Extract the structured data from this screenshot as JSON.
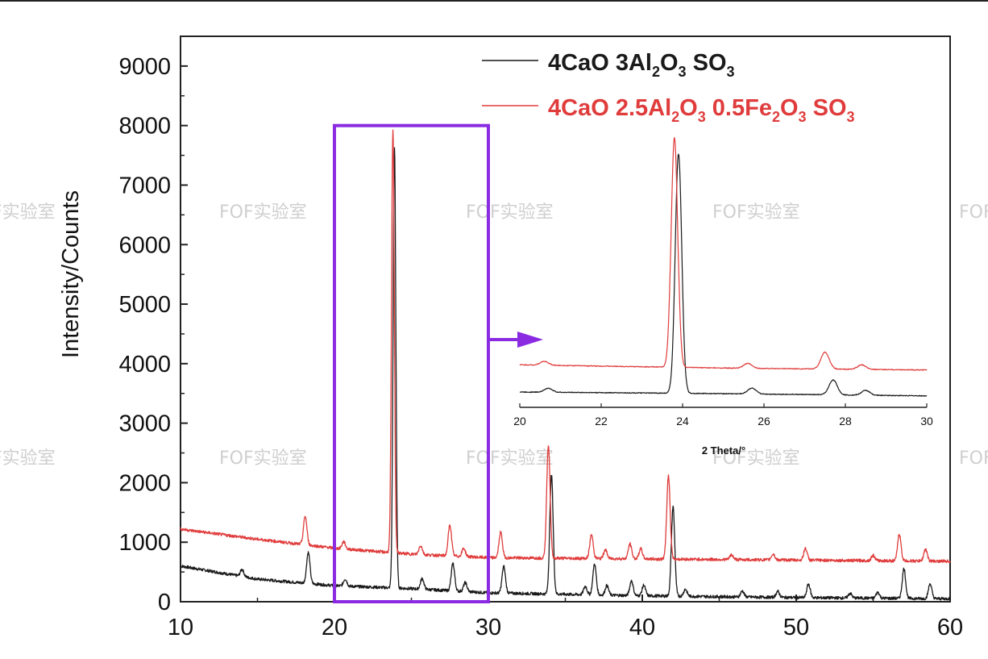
{
  "chart_data": {
    "type": "line",
    "title": "",
    "xlabel": "",
    "ylabel": "Intensity/Counts",
    "xlim": [
      10,
      60
    ],
    "ylim": [
      0,
      9500
    ],
    "xticks": [
      10,
      20,
      30,
      40,
      50,
      60
    ],
    "yticks": [
      0,
      1000,
      2000,
      3000,
      4000,
      5000,
      6000,
      7000,
      8000,
      9000
    ],
    "legend_position": "top-right",
    "series": [
      {
        "legend_parts": [
          {
            "text": "4CaO  3Al",
            "sub": false
          },
          {
            "text": "2",
            "sub": true
          },
          {
            "text": "O",
            "sub": false
          },
          {
            "text": "3",
            "sub": true
          },
          {
            "text": " SO",
            "sub": false
          },
          {
            "text": "3",
            "sub": true
          }
        ],
        "color": "#1a1a1a",
        "baseline": [
          [
            10,
            600
          ],
          [
            15,
            380
          ],
          [
            20,
            270
          ],
          [
            25,
            220
          ],
          [
            30,
            150
          ],
          [
            40,
            100
          ],
          [
            50,
            70
          ],
          [
            60,
            50
          ]
        ],
        "peaks": [
          [
            14,
            120
          ],
          [
            18.3,
            520
          ],
          [
            20.7,
            120
          ],
          [
            23.9,
            7400
          ],
          [
            25.7,
            180
          ],
          [
            27.7,
            460
          ],
          [
            28.5,
            150
          ],
          [
            31,
            450
          ],
          [
            34.1,
            2000
          ],
          [
            36.3,
            140
          ],
          [
            36.9,
            520
          ],
          [
            37.7,
            160
          ],
          [
            39.3,
            250
          ],
          [
            40.1,
            180
          ],
          [
            42,
            1500
          ],
          [
            42.8,
            120
          ],
          [
            46.5,
            100
          ],
          [
            48.8,
            100
          ],
          [
            50.8,
            230
          ],
          [
            53.5,
            80
          ],
          [
            55.3,
            100
          ],
          [
            57,
            500
          ],
          [
            58.7,
            250
          ]
        ]
      },
      {
        "legend_parts": [
          {
            "text": "4CaO  2.5Al",
            "sub": false
          },
          {
            "text": "2",
            "sub": true
          },
          {
            "text": "O",
            "sub": false
          },
          {
            "text": "3",
            "sub": true
          },
          {
            "text": " 0.5Fe",
            "sub": false
          },
          {
            "text": "2",
            "sub": true
          },
          {
            "text": "O",
            "sub": false
          },
          {
            "text": "3",
            "sub": true
          },
          {
            "text": " SO",
            "sub": false
          },
          {
            "text": "3",
            "sub": true
          }
        ],
        "color": "#e03c3c",
        "baseline": [
          [
            10,
            1220
          ],
          [
            15,
            1050
          ],
          [
            20,
            900
          ],
          [
            25,
            800
          ],
          [
            30,
            740
          ],
          [
            40,
            720
          ],
          [
            50,
            700
          ],
          [
            60,
            680
          ]
        ],
        "peaks": [
          [
            18.1,
            480
          ],
          [
            20.6,
            120
          ],
          [
            23.8,
            7100
          ],
          [
            25.6,
            150
          ],
          [
            27.5,
            520
          ],
          [
            28.4,
            140
          ],
          [
            30.8,
            430
          ],
          [
            33.9,
            1900
          ],
          [
            36.7,
            400
          ],
          [
            37.6,
            150
          ],
          [
            39.2,
            250
          ],
          [
            39.9,
            170
          ],
          [
            41.7,
            1400
          ],
          [
            45.8,
            80
          ],
          [
            48.5,
            100
          ],
          [
            50.6,
            200
          ],
          [
            55,
            90
          ],
          [
            56.7,
            450
          ],
          [
            58.4,
            200
          ]
        ]
      }
    ],
    "highlight_box": {
      "x0": 20,
      "x1": 30,
      "y0": 0,
      "y1": 8000,
      "color": "#8a2be2"
    },
    "inset": {
      "xlim": [
        20,
        30
      ],
      "xticks": [
        20,
        22,
        24,
        26,
        28,
        30
      ],
      "xlabel": "2 Theta/°"
    }
  },
  "watermark": {
    "text": "FOF实验室",
    "positions_note": "tiled"
  }
}
